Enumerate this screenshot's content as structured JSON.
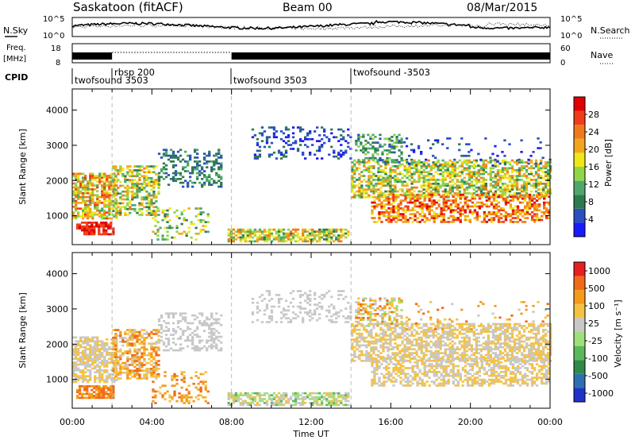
{
  "header": {
    "title": "Saskatoon (fitACF)",
    "beam": "Beam 00",
    "date": "08/Mar/2015"
  },
  "chart_data": [
    {
      "type": "line",
      "name": "noise-panel",
      "left_label": "N.Sky",
      "right_label": "N.Search",
      "yticks_left": [
        "10^5",
        "10^0"
      ],
      "yticks_right": [
        "10^5",
        "10^0"
      ]
    },
    {
      "type": "line",
      "name": "freq-panel",
      "left_label_top": "Freq.",
      "left_label_unit": "[MHz]",
      "right_label": "Nave",
      "yticks_left": [
        "18",
        "8"
      ],
      "yticks_right": [
        "60",
        "0"
      ]
    },
    {
      "type": "table",
      "name": "cpid-strip",
      "label": "CPID",
      "entries": [
        {
          "start_hour": 0.0,
          "label": "twofsound 3503"
        },
        {
          "start_hour": 2.0,
          "label": "rbsp 200"
        },
        {
          "start_hour": 8.0,
          "label": "twofsound 3503"
        },
        {
          "start_hour": 14.0,
          "label": "twofsound -3503"
        }
      ]
    },
    {
      "type": "heatmap",
      "name": "power",
      "ylabel": "Slant Range [km]",
      "yticks": [
        "1000",
        "2000",
        "3000",
        "4000"
      ],
      "ylim": [
        180,
        4600
      ],
      "colorbar_label": "Power [dB]",
      "colorbar_ticks": [
        "4",
        "8",
        "12",
        "16",
        "20",
        "24",
        "28"
      ],
      "colors": [
        "#1a1aff",
        "#2b4fc0",
        "#2e7a4f",
        "#4fa86b",
        "#8fd64a",
        "#f0e61a",
        "#f0a81a",
        "#f07a1a",
        "#f03c1a",
        "#e00000"
      ]
    },
    {
      "type": "heatmap",
      "name": "velocity",
      "ylabel": "Slant Range [km]",
      "yticks": [
        "1000",
        "2000",
        "3000",
        "4000"
      ],
      "ylim": [
        180,
        4600
      ],
      "colorbar_label": "Velocity [m s⁻¹]",
      "colorbar_ticks": [
        "1000",
        "500",
        "100",
        "25",
        "-25",
        "-100",
        "-500",
        "-1000"
      ],
      "colors": [
        "#2033c8",
        "#2e6fb0",
        "#2e8a4a",
        "#5cb85c",
        "#9ee07a",
        "#c8c8c8",
        "#f5c242",
        "#f59b1a",
        "#f06a1a",
        "#e62020"
      ]
    }
  ],
  "xaxis": {
    "ticks": [
      "00:00",
      "04:00",
      "08:00",
      "12:00",
      "16:00",
      "20:00",
      "00:00"
    ],
    "label": "Time UT"
  }
}
